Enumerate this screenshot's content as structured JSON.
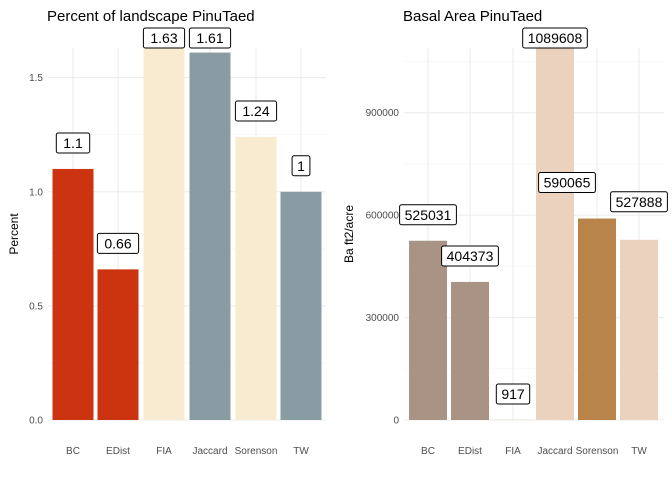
{
  "chart_data": [
    {
      "type": "bar",
      "title": "Percent of landscape  PinuTaed",
      "xlabel": "",
      "ylabel": "Percent",
      "categories": [
        "BC",
        "EDist",
        "FIA",
        "Jaccard",
        "Sorenson",
        "TW"
      ],
      "values": [
        1.1,
        0.66,
        1.63,
        1.61,
        1.24,
        1.0
      ],
      "value_labels": [
        "1.1",
        "0.66",
        "1.63",
        "1.61",
        "1.24",
        "1"
      ],
      "bar_colors": [
        "#CB3311",
        "#CB3311",
        "#F8EBD0",
        "#8A9CA3",
        "#F8EBD0",
        "#8A9CA3"
      ],
      "ylim": [
        0,
        1.63
      ],
      "yticks": [
        0,
        0.5,
        1.0,
        1.5
      ],
      "ytick_labels": [
        "0.0",
        "0.5",
        "1.0",
        "1.5"
      ],
      "grid": true,
      "legend": "none"
    },
    {
      "type": "bar",
      "title": "Basal Area  PinuTaed",
      "xlabel": "",
      "ylabel": "Ba ft2/acre",
      "categories": [
        "BC",
        "EDist",
        "FIA",
        "Jaccard",
        "Sorenson",
        "TW"
      ],
      "values": [
        525031,
        404373,
        917,
        1089608,
        590065,
        527888
      ],
      "value_labels": [
        "525031",
        "404373",
        "917",
        "1089608",
        "590065",
        "527888"
      ],
      "bar_colors": [
        "#A89385",
        "#A89385",
        "#EBD2BE",
        "#EBD2BE",
        "#B8844A",
        "#EBD2BE"
      ],
      "ylim": [
        0,
        1089608
      ],
      "yticks": [
        0,
        300000,
        600000,
        900000
      ],
      "ytick_labels": [
        "0",
        "300000",
        "600000",
        "900000"
      ],
      "grid": true,
      "legend": "none"
    }
  ]
}
